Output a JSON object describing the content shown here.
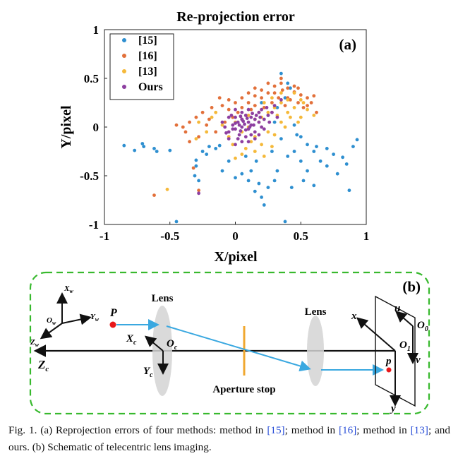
{
  "panel_a": {
    "title": "Re-projection error",
    "label": "(a)",
    "xlabel": "X/pixel",
    "ylabel": "Y/pixel",
    "x_ticks": [
      "-1",
      "-0.5",
      "0",
      "0.5",
      "1"
    ],
    "y_ticks": [
      "1",
      "0.5",
      "0",
      "-0.5",
      "-1"
    ],
    "legend": [
      "[15]",
      "[16]",
      "[13]",
      "Ours"
    ],
    "colors": {
      "m15": "#2e8fd0",
      "m16": "#e2703a",
      "m13": "#f5b93a",
      "ours": "#8d3fa0"
    }
  },
  "panel_b": {
    "label": "(b)",
    "lens1": "Lens",
    "lens2": "Lens",
    "aperture": "Aperture stop",
    "P": "P",
    "p": "p",
    "Xw": "X",
    "Xw_sub": "w",
    "Yw": "Y",
    "Yw_sub": "w",
    "Zw": "Z",
    "Zw_sub": "w",
    "Ow": "O",
    "Ow_sub": "w",
    "Zc": "Z",
    "Zc_sub": "c",
    "Xc": "X",
    "Xc_sub": "c",
    "Yc": "Y",
    "Yc_sub": "c",
    "Oc": "O",
    "Oc_sub": "c",
    "O1": "O",
    "O1_sub": "1",
    "O0": "O",
    "O0_sub": "0",
    "x": "x",
    "y": "y",
    "u": "u",
    "v": "v"
  },
  "caption": {
    "lead": "Fig. 1.    (a) Reprojection errors of four methods: method in ",
    "ref1": "[15]",
    "mid1": "; method in ",
    "ref2": "[16]",
    "mid2": "; method in ",
    "ref3": "[13]",
    "tail": "; and ours. (b) Schematic of telecentric lens imaging."
  },
  "chart_data": {
    "type": "scatter",
    "title": "Re-projection error",
    "xlabel": "X/pixel",
    "ylabel": "Y/pixel",
    "xlim": [
      -1,
      1
    ],
    "ylim": [
      -1,
      1
    ],
    "legend_position": "top-left",
    "series": [
      {
        "name": "[15]",
        "color": "#2e8fd0",
        "points": [
          [
            -0.85,
            -0.19
          ],
          [
            -0.77,
            -0.24
          ],
          [
            -0.71,
            -0.17
          ],
          [
            -0.7,
            -0.2
          ],
          [
            -0.6,
            -0.25
          ],
          [
            -0.5,
            -0.24
          ],
          [
            -0.45,
            -0.97
          ],
          [
            -0.3,
            -0.34
          ],
          [
            -0.31,
            -0.5
          ],
          [
            -0.25,
            -0.25
          ],
          [
            -0.22,
            -0.28
          ],
          [
            -0.2,
            -0.2
          ],
          [
            -0.12,
            -0.19
          ],
          [
            -0.3,
            -0.4
          ],
          [
            -0.1,
            -0.45
          ],
          [
            -0.05,
            -0.35
          ],
          [
            0.05,
            -0.48
          ],
          [
            0.1,
            -0.55
          ],
          [
            0.15,
            -0.66
          ],
          [
            0.2,
            -0.72
          ],
          [
            0.22,
            -0.8
          ],
          [
            0.25,
            -0.62
          ],
          [
            0.3,
            -0.55
          ],
          [
            0.38,
            -0.97
          ],
          [
            0.32,
            -0.45
          ],
          [
            0.4,
            -0.3
          ],
          [
            0.45,
            -0.25
          ],
          [
            0.5,
            -0.35
          ],
          [
            0.55,
            -0.45
          ],
          [
            0.6,
            -0.6
          ],
          [
            0.62,
            -0.2
          ],
          [
            0.65,
            -0.35
          ],
          [
            0.7,
            -0.22
          ],
          [
            0.75,
            -0.28
          ],
          [
            0.78,
            -0.48
          ],
          [
            0.82,
            -0.31
          ],
          [
            0.85,
            -0.38
          ],
          [
            0.87,
            -0.65
          ],
          [
            0.9,
            -0.2
          ],
          [
            0.93,
            -0.13
          ],
          [
            0.5,
            -0.1
          ],
          [
            0.55,
            -0.18
          ],
          [
            0.42,
            0.4
          ],
          [
            0.35,
            0.55
          ],
          [
            0.4,
            0.45
          ],
          [
            0.47,
            -0.08
          ],
          [
            0.3,
            0.05
          ],
          [
            0.25,
            0.12
          ],
          [
            0.38,
            0.3
          ],
          [
            0.32,
            0.2
          ],
          [
            0.2,
            0.25
          ],
          [
            0.45,
            0.02
          ],
          [
            0.6,
            -0.25
          ],
          [
            0.12,
            -0.45
          ],
          [
            0.0,
            -0.52
          ],
          [
            0.18,
            -0.58
          ],
          [
            -0.15,
            -0.22
          ],
          [
            0.7,
            -0.4
          ],
          [
            0.08,
            -0.3
          ],
          [
            0.35,
            -0.12
          ],
          [
            0.28,
            -0.25
          ],
          [
            -0.62,
            -0.22
          ],
          [
            -0.28,
            -0.55
          ],
          [
            0.16,
            -0.35
          ],
          [
            0.52,
            -0.55
          ],
          [
            0.43,
            -0.62
          ]
        ]
      },
      {
        "name": "[16]",
        "color": "#e2703a",
        "points": [
          [
            -0.62,
            -0.7
          ],
          [
            -0.4,
            0.0
          ],
          [
            -0.45,
            0.02
          ],
          [
            -0.35,
            0.05
          ],
          [
            -0.38,
            -0.05
          ],
          [
            -0.3,
            0.1
          ],
          [
            -0.25,
            0.15
          ],
          [
            -0.2,
            0.08
          ],
          [
            -0.18,
            0.2
          ],
          [
            -0.1,
            0.22
          ],
          [
            -0.05,
            0.28
          ],
          [
            0.0,
            0.25
          ],
          [
            0.05,
            0.3
          ],
          [
            0.1,
            0.35
          ],
          [
            0.15,
            0.32
          ],
          [
            0.2,
            0.38
          ],
          [
            0.25,
            0.35
          ],
          [
            0.3,
            0.42
          ],
          [
            0.35,
            0.45
          ],
          [
            0.4,
            0.4
          ],
          [
            0.45,
            0.36
          ],
          [
            0.5,
            0.33
          ],
          [
            0.55,
            0.3
          ],
          [
            0.6,
            0.32
          ],
          [
            0.48,
            0.25
          ],
          [
            0.42,
            0.28
          ],
          [
            0.38,
            0.22
          ],
          [
            0.33,
            0.3
          ],
          [
            0.28,
            0.25
          ],
          [
            0.22,
            0.2
          ],
          [
            0.18,
            0.15
          ],
          [
            0.12,
            0.18
          ],
          [
            0.08,
            0.12
          ],
          [
            0.02,
            0.15
          ],
          [
            -0.02,
            0.1
          ],
          [
            -0.08,
            0.05
          ],
          [
            -0.15,
            -0.05
          ],
          [
            -0.22,
            0.02
          ],
          [
            -0.28,
            -0.1
          ],
          [
            -0.35,
            -0.15
          ],
          [
            -0.32,
            -0.42
          ],
          [
            -0.28,
            -0.65
          ],
          [
            0.52,
            0.2
          ],
          [
            0.58,
            0.25
          ],
          [
            0.62,
            0.15
          ],
          [
            0.35,
            0.5
          ],
          [
            0.25,
            0.45
          ],
          [
            0.15,
            0.4
          ],
          [
            0.05,
            0.2
          ],
          [
            -0.12,
            0.3
          ],
          [
            0.3,
            0.35
          ],
          [
            0.4,
            0.3
          ],
          [
            0.45,
            0.42
          ],
          [
            0.2,
            0.3
          ],
          [
            0.1,
            0.25
          ],
          [
            -0.05,
            0.18
          ],
          [
            0.28,
            0.15
          ],
          [
            0.36,
            0.38
          ],
          [
            0.48,
            0.4
          ],
          [
            0.55,
            0.22
          ],
          [
            0.05,
            0.08
          ],
          [
            0.15,
            0.22
          ]
        ]
      },
      {
        "name": "[13]",
        "color": "#f5b93a",
        "points": [
          [
            -0.52,
            -0.64
          ],
          [
            -0.3,
            -0.12
          ],
          [
            -0.28,
            0.05
          ],
          [
            -0.22,
            -0.05
          ],
          [
            -0.15,
            0.15
          ],
          [
            -0.1,
            0.02
          ],
          [
            -0.05,
            -0.1
          ],
          [
            0.0,
            0.05
          ],
          [
            0.05,
            -0.05
          ],
          [
            0.1,
            0.0
          ],
          [
            0.15,
            0.08
          ],
          [
            0.2,
            0.1
          ],
          [
            0.25,
            0.15
          ],
          [
            0.3,
            0.2
          ],
          [
            0.35,
            0.25
          ],
          [
            0.4,
            0.15
          ],
          [
            0.45,
            0.2
          ],
          [
            0.5,
            0.1
          ],
          [
            0.55,
            0.18
          ],
          [
            0.6,
            0.12
          ],
          [
            0.15,
            -0.1
          ],
          [
            0.2,
            -0.18
          ],
          [
            0.22,
            -0.3
          ],
          [
            0.28,
            -0.2
          ],
          [
            0.3,
            -0.08
          ],
          [
            0.35,
            0.05
          ],
          [
            0.4,
            0.28
          ],
          [
            0.45,
            0.35
          ],
          [
            0.5,
            0.28
          ],
          [
            0.25,
            -0.05
          ],
          [
            0.18,
            0.05
          ],
          [
            0.12,
            -0.15
          ],
          [
            0.08,
            -0.22
          ],
          [
            0.05,
            -0.28
          ],
          [
            -0.02,
            -0.18
          ],
          [
            0.32,
            0.12
          ],
          [
            0.38,
            0.0
          ],
          [
            0.42,
            0.1
          ],
          [
            0.48,
            0.05
          ],
          [
            0.52,
            0.25
          ],
          [
            -0.18,
            0.1
          ],
          [
            0.28,
            0.3
          ],
          [
            0.35,
            0.35
          ],
          [
            0.1,
            0.12
          ],
          [
            0.22,
            0.25
          ],
          [
            0.0,
            -0.32
          ],
          [
            0.15,
            -0.25
          ]
        ]
      },
      {
        "name": "Ours",
        "color": "#8d3fa0",
        "points": [
          [
            -0.08,
            0.0
          ],
          [
            -0.05,
            -0.05
          ],
          [
            -0.02,
            0.02
          ],
          [
            0.0,
            -0.02
          ],
          [
            0.02,
            0.05
          ],
          [
            0.05,
            0.0
          ],
          [
            0.08,
            -0.03
          ],
          [
            0.1,
            0.05
          ],
          [
            0.12,
            0.02
          ],
          [
            0.15,
            -0.05
          ],
          [
            0.05,
            0.08
          ],
          [
            0.03,
            -0.08
          ],
          [
            0.0,
            0.1
          ],
          [
            -0.03,
            0.12
          ],
          [
            0.08,
            0.12
          ],
          [
            0.12,
            0.1
          ],
          [
            0.15,
            0.08
          ],
          [
            0.18,
            0.05
          ],
          [
            0.2,
            0.0
          ],
          [
            0.22,
            0.08
          ],
          [
            0.25,
            0.12
          ],
          [
            0.18,
            0.15
          ],
          [
            0.1,
            0.18
          ],
          [
            0.05,
            0.15
          ],
          [
            0.0,
            0.18
          ],
          [
            -0.05,
            0.1
          ],
          [
            -0.1,
            0.05
          ],
          [
            0.02,
            -0.12
          ],
          [
            0.05,
            -0.15
          ],
          [
            0.08,
            -0.1
          ],
          [
            0.12,
            -0.08
          ],
          [
            0.1,
            -0.15
          ],
          [
            0.15,
            -0.12
          ],
          [
            0.0,
            -0.18
          ],
          [
            -0.05,
            -0.12
          ],
          [
            0.03,
            0.02
          ],
          [
            0.07,
            0.03
          ],
          [
            0.1,
            -0.02
          ],
          [
            0.14,
            0.02
          ],
          [
            0.04,
            -0.04
          ],
          [
            -0.02,
            -0.02
          ],
          [
            0.06,
            0.06
          ],
          [
            0.16,
            0.12
          ],
          [
            0.2,
            0.18
          ],
          [
            0.24,
            0.2
          ],
          [
            0.28,
            0.15
          ],
          [
            0.3,
            0.22
          ],
          [
            0.35,
            0.28
          ],
          [
            0.32,
            0.1
          ],
          [
            0.26,
            0.05
          ],
          [
            0.22,
            -0.02
          ],
          [
            0.18,
            -0.08
          ],
          [
            -0.28,
            -0.68
          ],
          [
            0.0,
            0.04
          ],
          [
            0.09,
            0.09
          ],
          [
            0.13,
            0.14
          ],
          [
            -0.07,
            -0.06
          ],
          [
            0.19,
            0.1
          ],
          [
            0.11,
            0.0
          ],
          [
            0.04,
            0.11
          ]
        ]
      }
    ]
  }
}
